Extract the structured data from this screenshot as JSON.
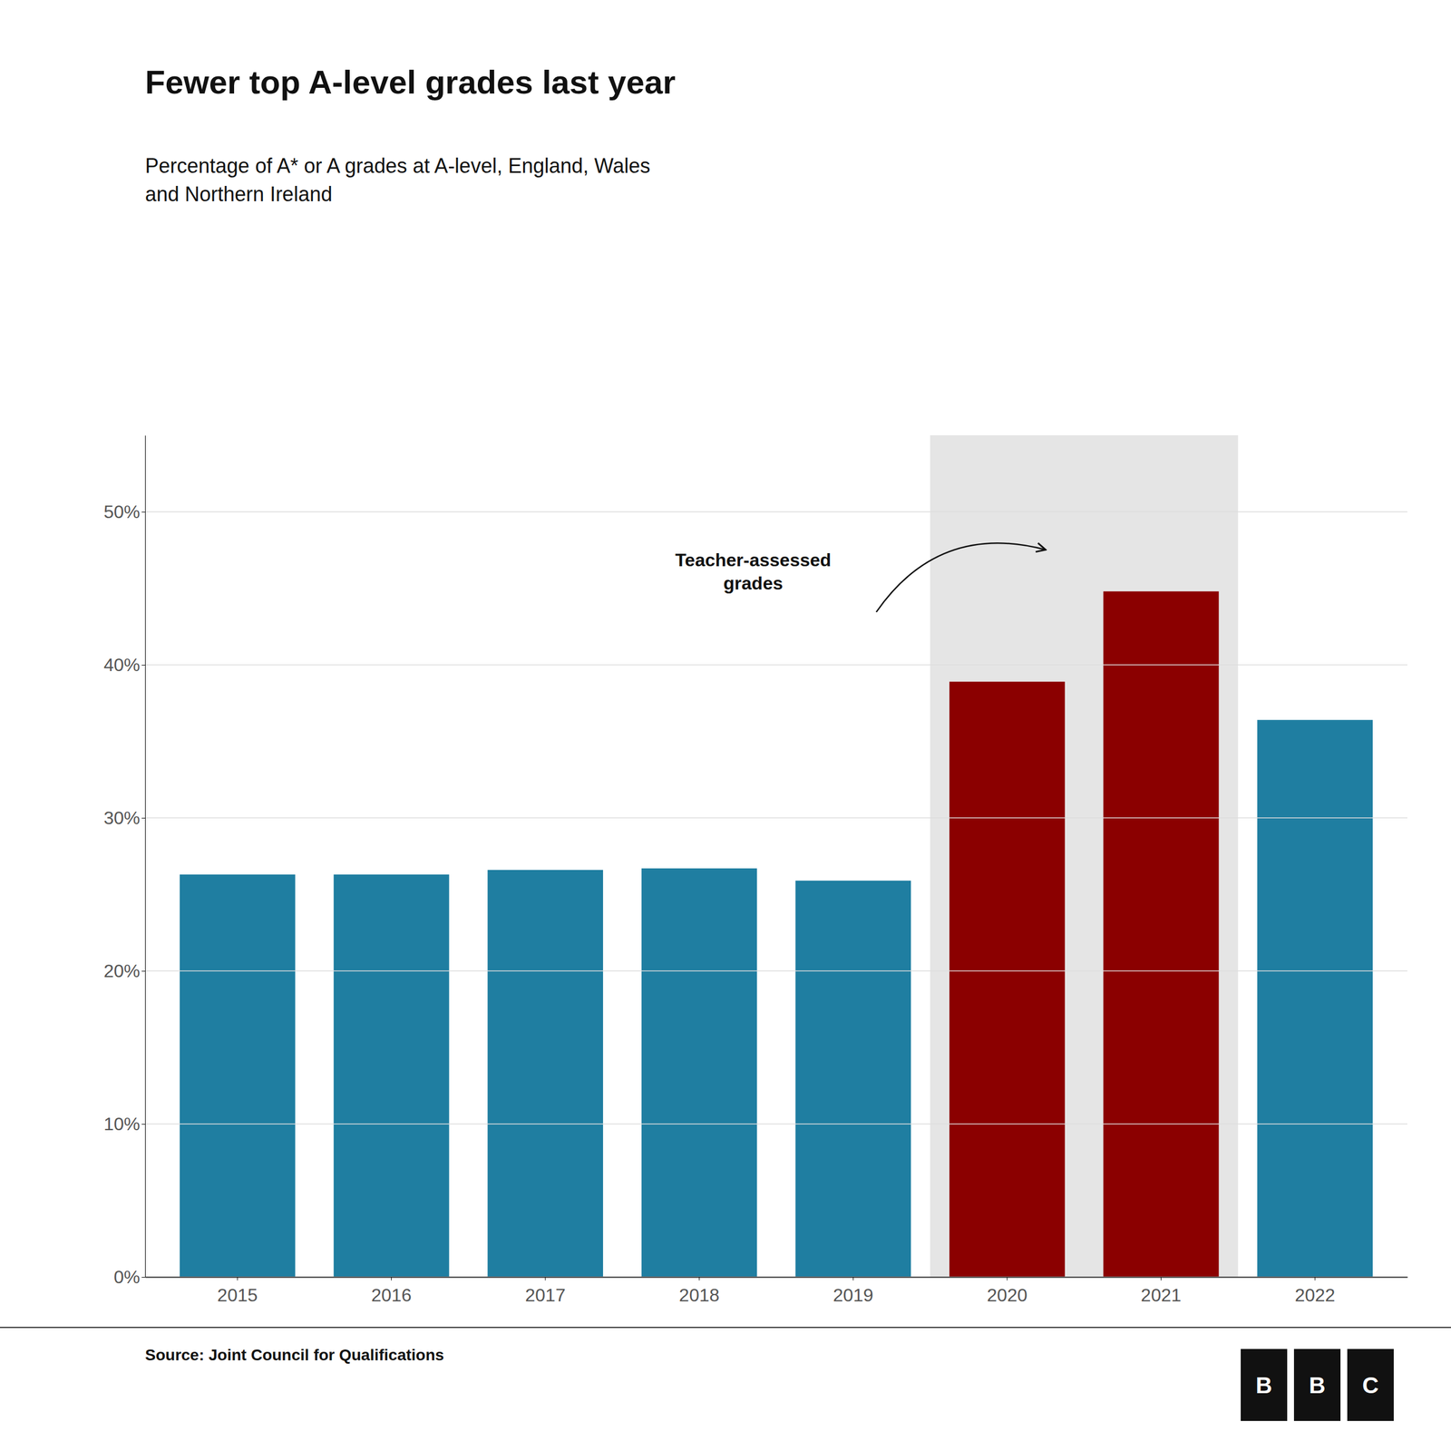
{
  "chart_data": {
    "type": "bar",
    "title": "Fewer top A-level grades last year",
    "subtitle": "Percentage of A* or A grades at A-level, England, Wales\nand Northern Ireland",
    "source": "Source: Joint Council for Qualifications",
    "logo": "BBC",
    "annotations": [
      "Teacher-assessed\ngrades"
    ],
    "categories": [
      "2015",
      "2016",
      "2017",
      "2018",
      "2019",
      "2020",
      "2021",
      "2022"
    ],
    "values": [
      26.3,
      26.3,
      26.6,
      26.7,
      25.9,
      38.9,
      44.8,
      36.4
    ],
    "colors": [
      "#1f7ea1",
      "#1f7ea1",
      "#1f7ea1",
      "#1f7ea1",
      "#1f7ea1",
      "#8b0000",
      "#8b0000",
      "#1f7ea1"
    ],
    "highlight": [
      "2020",
      "2021"
    ],
    "ylim": [
      0,
      55
    ],
    "yticks": [
      {
        "value": 0,
        "label": "0%"
      },
      {
        "value": 10,
        "label": "10%"
      },
      {
        "value": 20,
        "label": "20%"
      },
      {
        "value": 30,
        "label": "30%"
      },
      {
        "value": 40,
        "label": "40%"
      },
      {
        "value": 50,
        "label": "50%"
      }
    ],
    "grid": true
  }
}
